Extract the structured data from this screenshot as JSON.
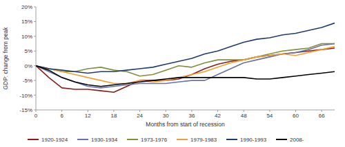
{
  "chart_data": {
    "type": "line",
    "x_label": "Months from start of recession",
    "y_label": "GDP: change from peak",
    "x": [
      0,
      3,
      6,
      9,
      12,
      15,
      18,
      21,
      24,
      27,
      30,
      33,
      36,
      39,
      42,
      45,
      48,
      51,
      54,
      57,
      60,
      63,
      66,
      69
    ],
    "xlim": [
      0,
      69
    ],
    "xticks": [
      0,
      6,
      12,
      18,
      24,
      30,
      36,
      42,
      48,
      54,
      60,
      66
    ],
    "ylim": [
      -15,
      20
    ],
    "yticks": [
      {
        "value": -15,
        "label": "-15%"
      },
      {
        "value": -10,
        "label": "-10%"
      },
      {
        "value": -5,
        "label": "-5%"
      },
      {
        "value": 0,
        "label": "0%"
      },
      {
        "value": 5,
        "label": "5%"
      },
      {
        "value": 10,
        "label": "10%"
      },
      {
        "value": 15,
        "label": "15%"
      },
      {
        "value": 20,
        "label": "20%"
      }
    ],
    "grid": false,
    "legend": "bottom",
    "series": [
      {
        "name": "1920-1924",
        "color": "#8b1a1a",
        "values": [
          0,
          -4,
          -7.5,
          -8,
          -8,
          -8.5,
          -9,
          -7,
          -5,
          -5,
          -5,
          -4.5,
          -3,
          -1,
          0.5,
          1.5,
          2,
          3,
          3.5,
          4,
          4.5,
          5,
          5.5,
          6
        ]
      },
      {
        "name": "1930-1934",
        "color": "#6b6fa8",
        "values": [
          0,
          -2,
          -4,
          -5.5,
          -7,
          -7.5,
          -7,
          -6.5,
          -6,
          -6,
          -6,
          -5.5,
          -5,
          -5,
          -3,
          -1,
          1,
          2,
          3,
          4,
          4.5,
          5.5,
          7,
          7.5
        ]
      },
      {
        "name": "1973-1976",
        "color": "#7f8f3a",
        "values": [
          0,
          -1,
          -2,
          -2,
          -1,
          -0.5,
          -1.5,
          -2,
          -3.5,
          -3,
          -1.5,
          0,
          -0.5,
          1,
          2,
          2,
          2,
          3,
          4,
          5,
          5.5,
          6,
          7.5,
          7.5
        ]
      },
      {
        "name": "1979-1983",
        "color": "#f0a030",
        "values": [
          0,
          -1,
          -2,
          -3,
          -4,
          -5,
          -6,
          -6,
          -5,
          -5.5,
          -5,
          -4,
          -3,
          -2,
          -0.5,
          1,
          2,
          3,
          3.5,
          4,
          3.5,
          4.5,
          5.5,
          6.5
        ]
      },
      {
        "name": "1990-1993",
        "color": "#1f3a6e",
        "values": [
          0,
          -1,
          -1.5,
          -2,
          -2.5,
          -2,
          -2,
          -1.5,
          -1,
          -0.5,
          0.5,
          1.5,
          2.5,
          4,
          5,
          6.5,
          8,
          9,
          9.5,
          10.5,
          11,
          12,
          13,
          14.5
        ]
      },
      {
        "name": "2008-",
        "color": "#000000",
        "values": [
          0,
          -1.5,
          -4,
          -5.5,
          -6.5,
          -7,
          -6.5,
          -6,
          -5.5,
          -5,
          -4.5,
          -4,
          -4,
          -4,
          -4,
          -4,
          -4,
          -4.5,
          -4.5,
          -4,
          -3.5,
          -3,
          -2.5,
          -2
        ]
      }
    ]
  }
}
